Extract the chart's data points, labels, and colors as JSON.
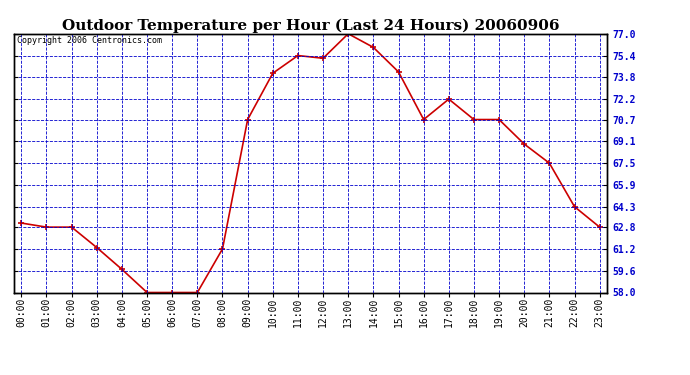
{
  "title": "Outdoor Temperature per Hour (Last 24 Hours) 20060906",
  "copyright_text": "Copyright 2006 Centronics.com",
  "hours": [
    0,
    1,
    2,
    3,
    4,
    5,
    6,
    7,
    8,
    9,
    10,
    11,
    12,
    13,
    14,
    15,
    16,
    17,
    18,
    19,
    20,
    21,
    22,
    23
  ],
  "hour_labels": [
    "00:00",
    "01:00",
    "02:00",
    "03:00",
    "04:00",
    "05:00",
    "06:00",
    "07:00",
    "08:00",
    "09:00",
    "10:00",
    "11:00",
    "12:00",
    "13:00",
    "14:00",
    "15:00",
    "16:00",
    "17:00",
    "18:00",
    "19:00",
    "20:00",
    "21:00",
    "22:00",
    "23:00"
  ],
  "temperatures": [
    63.1,
    62.8,
    62.8,
    61.3,
    59.7,
    58.0,
    58.0,
    58.0,
    61.2,
    70.7,
    74.1,
    75.4,
    75.2,
    77.0,
    76.0,
    74.2,
    70.7,
    72.2,
    70.7,
    70.7,
    68.9,
    67.5,
    64.3,
    62.8
  ],
  "ylim": [
    58.0,
    77.0
  ],
  "yticks": [
    58.0,
    59.6,
    61.2,
    62.8,
    64.3,
    65.9,
    67.5,
    69.1,
    70.7,
    72.2,
    73.8,
    75.4,
    77.0
  ],
  "line_color": "#cc0000",
  "marker_color": "#cc0000",
  "bg_color": "#ffffff",
  "plot_bg_color": "#ffffff",
  "grid_color": "#0000cc",
  "title_fontsize": 11,
  "copyright_fontsize": 6,
  "tick_fontsize": 7
}
